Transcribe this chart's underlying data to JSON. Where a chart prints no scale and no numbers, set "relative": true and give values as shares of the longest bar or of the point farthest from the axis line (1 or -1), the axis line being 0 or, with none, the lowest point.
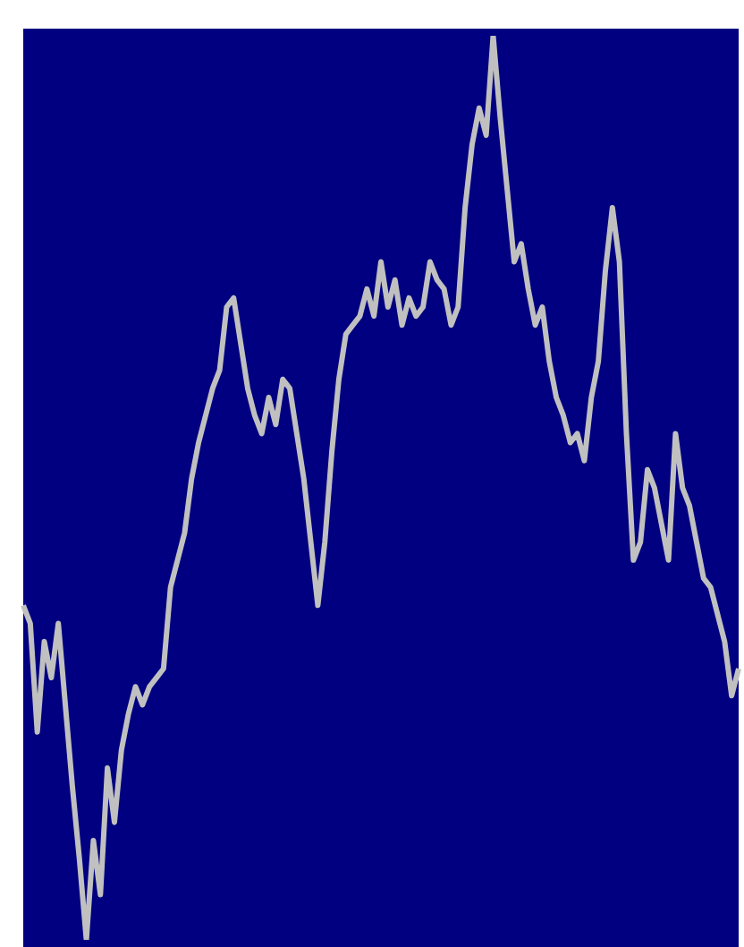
{
  "chart_data": {
    "type": "line",
    "relative": true,
    "marker": "none",
    "legend": false,
    "categories": [
      null,
      null,
      null,
      null,
      null,
      null,
      null,
      null,
      null,
      null,
      null,
      null,
      null,
      null,
      null,
      null,
      null,
      null,
      null,
      null,
      null,
      null,
      null,
      null,
      null,
      null,
      null,
      null,
      null,
      null,
      null,
      null,
      null,
      null,
      null,
      null,
      null,
      null,
      null,
      null,
      null,
      null,
      null,
      null,
      null,
      null,
      null,
      null,
      null,
      null,
      null,
      null,
      null,
      null,
      null,
      null,
      null,
      null,
      null,
      null,
      null,
      null,
      null,
      null,
      null,
      null,
      null,
      null,
      null,
      null,
      null,
      null,
      null,
      null,
      null,
      null,
      null,
      null,
      null,
      null,
      null,
      null,
      null,
      null,
      null,
      null,
      null,
      null,
      null,
      null,
      null,
      null,
      null,
      null,
      null,
      null,
      null,
      null,
      null,
      null,
      null,
      null,
      null
    ],
    "series": [
      {
        "color": "#c0c0c0",
        "values": [
          0.37,
          0.35,
          0.23,
          0.33,
          0.29,
          0.35,
          0.26,
          0.17,
          0.09,
          0,
          0.11,
          0.05,
          0.19,
          0.13,
          0.21,
          0.25,
          0.28,
          0.26,
          0.28,
          0.29,
          0.3,
          0.39,
          0.42,
          0.45,
          0.51,
          0.55,
          0.58,
          0.61,
          0.63,
          0.7,
          0.71,
          0.66,
          0.61,
          0.58,
          0.56,
          0.6,
          0.57,
          0.62,
          0.61,
          0.56,
          0.51,
          0.44,
          0.37,
          0.44,
          0.54,
          0.62,
          0.67,
          0.68,
          0.69,
          0.72,
          0.69,
          0.75,
          0.7,
          0.73,
          0.68,
          0.71,
          0.69,
          0.7,
          0.75,
          0.73,
          0.72,
          0.68,
          0.7,
          0.81,
          0.88,
          0.92,
          0.89,
          1,
          0.91,
          0.83,
          0.75,
          0.77,
          0.72,
          0.68,
          0.7,
          0.64,
          0.6,
          0.58,
          0.55,
          0.56,
          0.53,
          0.6,
          0.64,
          0.74,
          0.81,
          0.75,
          0.56,
          0.42,
          0.44,
          0.52,
          0.5,
          0.46,
          0.42,
          0.56,
          0.5,
          0.48,
          0.44,
          0.4,
          0.39,
          0.36,
          0.33,
          0.27,
          0.3
        ]
      }
    ]
  }
}
